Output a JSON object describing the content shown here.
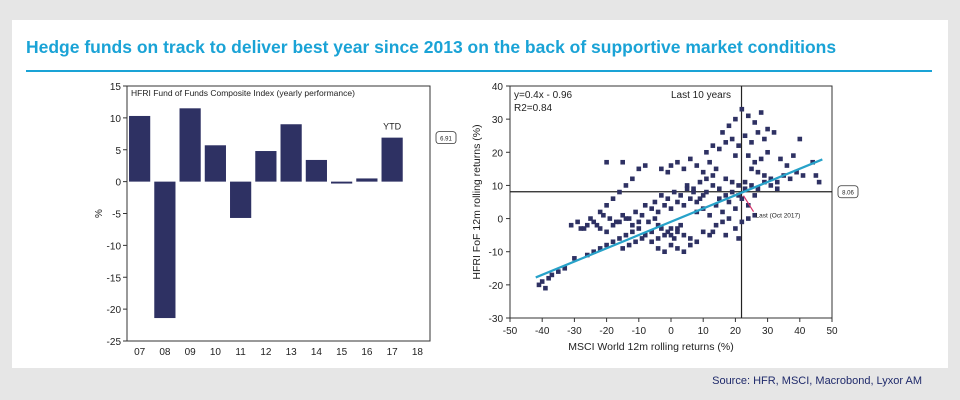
{
  "title": "Hedge funds on track to deliver best year since 2013 on the back of supportive market conditions",
  "source": "Source: HFR, MSCI, Macrobond, Lyxor AM",
  "colors": {
    "title": "#1aa3d6",
    "bar": "#2e3163",
    "point": "#2e3163",
    "fit": "#27a2c9",
    "marker": "#d6336c"
  },
  "chart_data": [
    {
      "type": "bar",
      "title": "HFRI Fund of Funds Composite Index (yearly performance)",
      "ylabel": "%",
      "ylim": [
        -25,
        15
      ],
      "yticks": [
        15,
        10,
        5,
        0,
        -5,
        -10,
        -15,
        -20,
        -25
      ],
      "categories": [
        "07",
        "08",
        "09",
        "10",
        "11",
        "12",
        "13",
        "14",
        "15",
        "16",
        "17",
        "18"
      ],
      "values": [
        10.3,
        -21.4,
        11.5,
        5.7,
        -5.7,
        4.8,
        9.0,
        3.4,
        -0.3,
        0.5,
        6.9,
        null
      ],
      "annotation": "YTD",
      "callout": "6.91",
      "grid": false
    },
    {
      "type": "scatter",
      "title": "Last 10 years",
      "xlabel": "MSCI World 12m rolling returns (%)",
      "ylabel": "HFRI FoF 12m rolling returns (%)",
      "xlim": [
        -50,
        50
      ],
      "ylim": [
        -30,
        40
      ],
      "xticks": [
        -50,
        -40,
        -30,
        -20,
        -10,
        0,
        10,
        20,
        30,
        40,
        50
      ],
      "yticks": [
        40,
        30,
        20,
        10,
        0,
        -10,
        -20,
        -30
      ],
      "equation": "y=0.4x - 0.96",
      "r2": "R2=0.84",
      "fit": {
        "slope": 0.4,
        "intercept": -0.96,
        "x_range": [
          -42,
          47
        ]
      },
      "reference_lines": {
        "x": 21.9,
        "y": 8.1
      },
      "marker_label": "Last (Oct 2017)",
      "callout": "8.06",
      "grid": false,
      "points": [
        [
          -41,
          -20
        ],
        [
          -40,
          -19
        ],
        [
          -38,
          -18
        ],
        [
          -39,
          -21
        ],
        [
          -37,
          -17
        ],
        [
          -35,
          -16
        ],
        [
          -33,
          -15
        ],
        [
          -30,
          -12
        ],
        [
          -26,
          -11
        ],
        [
          -24,
          -10
        ],
        [
          -22,
          -9
        ],
        [
          -20,
          -8
        ],
        [
          -18,
          -7
        ],
        [
          -16,
          -6
        ],
        [
          -14,
          -5
        ],
        [
          -12,
          -4
        ],
        [
          -10,
          -3
        ],
        [
          -8,
          -5
        ],
        [
          -6,
          -4
        ],
        [
          -4,
          -2
        ],
        [
          -28,
          -3
        ],
        [
          -26,
          -2
        ],
        [
          -24,
          -1
        ],
        [
          -22,
          -3
        ],
        [
          -20,
          -4
        ],
        [
          -18,
          -2
        ],
        [
          -16,
          -1
        ],
        [
          -14,
          0
        ],
        [
          -12,
          -2
        ],
        [
          -10,
          -1
        ],
        [
          -31,
          -2
        ],
        [
          -29,
          -1
        ],
        [
          -27,
          -3
        ],
        [
          -25,
          0
        ],
        [
          -23,
          -2
        ],
        [
          -21,
          1
        ],
        [
          -19,
          0
        ],
        [
          -17,
          -1
        ],
        [
          -15,
          1
        ],
        [
          -13,
          0
        ],
        [
          -11,
          2
        ],
        [
          -9,
          1
        ],
        [
          -7,
          -1
        ],
        [
          -5,
          0
        ],
        [
          -3,
          -3
        ],
        [
          -1,
          -4
        ],
        [
          0,
          -5
        ],
        [
          1,
          -6
        ],
        [
          2,
          -3
        ],
        [
          3,
          -2
        ],
        [
          -6,
          -7
        ],
        [
          -4,
          -6
        ],
        [
          -2,
          -5
        ],
        [
          0,
          -3
        ],
        [
          2,
          -4
        ],
        [
          4,
          -5
        ],
        [
          6,
          -6
        ],
        [
          8,
          -7
        ],
        [
          10,
          -4
        ],
        [
          12,
          -5
        ],
        [
          -8,
          4
        ],
        [
          -6,
          3
        ],
        [
          -4,
          2
        ],
        [
          -2,
          4
        ],
        [
          0,
          3
        ],
        [
          2,
          5
        ],
        [
          4,
          4
        ],
        [
          6,
          6
        ],
        [
          8,
          5
        ],
        [
          10,
          7
        ],
        [
          -3,
          15
        ],
        [
          -1,
          14
        ],
        [
          0,
          16
        ],
        [
          2,
          17
        ],
        [
          4,
          15
        ],
        [
          6,
          18
        ],
        [
          8,
          16
        ],
        [
          10,
          14
        ],
        [
          12,
          17
        ],
        [
          14,
          15
        ],
        [
          5,
          10
        ],
        [
          7,
          9
        ],
        [
          9,
          11
        ],
        [
          11,
          8
        ],
        [
          13,
          10
        ],
        [
          15,
          9
        ],
        [
          17,
          12
        ],
        [
          19,
          11
        ],
        [
          21,
          10
        ],
        [
          23,
          9
        ],
        [
          8,
          2
        ],
        [
          10,
          3
        ],
        [
          12,
          1
        ],
        [
          14,
          4
        ],
        [
          16,
          2
        ],
        [
          18,
          5
        ],
        [
          20,
          3
        ],
        [
          22,
          6
        ],
        [
          24,
          4
        ],
        [
          26,
          7
        ],
        [
          11,
          20
        ],
        [
          13,
          22
        ],
        [
          15,
          21
        ],
        [
          17,
          23
        ],
        [
          19,
          24
        ],
        [
          21,
          22
        ],
        [
          23,
          25
        ],
        [
          25,
          23
        ],
        [
          27,
          26
        ],
        [
          29,
          24
        ],
        [
          14,
          -2
        ],
        [
          16,
          -1
        ],
        [
          18,
          0
        ],
        [
          20,
          -3
        ],
        [
          22,
          -1
        ],
        [
          24,
          0
        ],
        [
          26,
          1
        ],
        [
          13,
          -4
        ],
        [
          17,
          -5
        ],
        [
          21,
          -6
        ],
        [
          18,
          28
        ],
        [
          20,
          30
        ],
        [
          22,
          33
        ],
        [
          24,
          31
        ],
        [
          26,
          29
        ],
        [
          28,
          32
        ],
        [
          30,
          27
        ],
        [
          32,
          26
        ],
        [
          16,
          26
        ],
        [
          20,
          19
        ],
        [
          25,
          15
        ],
        [
          27,
          14
        ],
        [
          29,
          13
        ],
        [
          31,
          12
        ],
        [
          33,
          11
        ],
        [
          35,
          13
        ],
        [
          37,
          12
        ],
        [
          39,
          14
        ],
        [
          41,
          13
        ],
        [
          46,
          11
        ],
        [
          -5,
          5
        ],
        [
          -3,
          7
        ],
        [
          -1,
          6
        ],
        [
          1,
          8
        ],
        [
          3,
          7
        ],
        [
          5,
          9
        ],
        [
          7,
          8
        ],
        [
          9,
          6
        ],
        [
          11,
          12
        ],
        [
          13,
          13
        ],
        [
          15,
          6
        ],
        [
          17,
          7
        ],
        [
          19,
          8
        ],
        [
          21,
          7
        ],
        [
          23,
          11
        ],
        [
          25,
          10
        ],
        [
          27,
          9
        ],
        [
          29,
          11
        ],
        [
          31,
          10
        ],
        [
          33,
          9
        ],
        [
          40,
          24
        ],
        [
          45,
          13
        ],
        [
          44,
          17
        ],
        [
          38,
          19
        ],
        [
          36,
          16
        ],
        [
          34,
          18
        ],
        [
          30,
          20
        ],
        [
          28,
          18
        ],
        [
          26,
          17
        ],
        [
          24,
          19
        ],
        [
          -20,
          17
        ],
        [
          -15,
          17
        ],
        [
          -10,
          15
        ],
        [
          -8,
          16
        ],
        [
          -12,
          12
        ],
        [
          -14,
          10
        ],
        [
          -16,
          8
        ],
        [
          -18,
          6
        ],
        [
          -20,
          4
        ],
        [
          -22,
          2
        ],
        [
          0,
          -8
        ],
        [
          2,
          -9
        ],
        [
          4,
          -10
        ],
        [
          6,
          -8
        ],
        [
          -2,
          -10
        ],
        [
          -4,
          -9
        ],
        [
          -9,
          -6
        ],
        [
          -11,
          -7
        ],
        [
          -13,
          -8
        ],
        [
          -15,
          -9
        ]
      ]
    }
  ]
}
